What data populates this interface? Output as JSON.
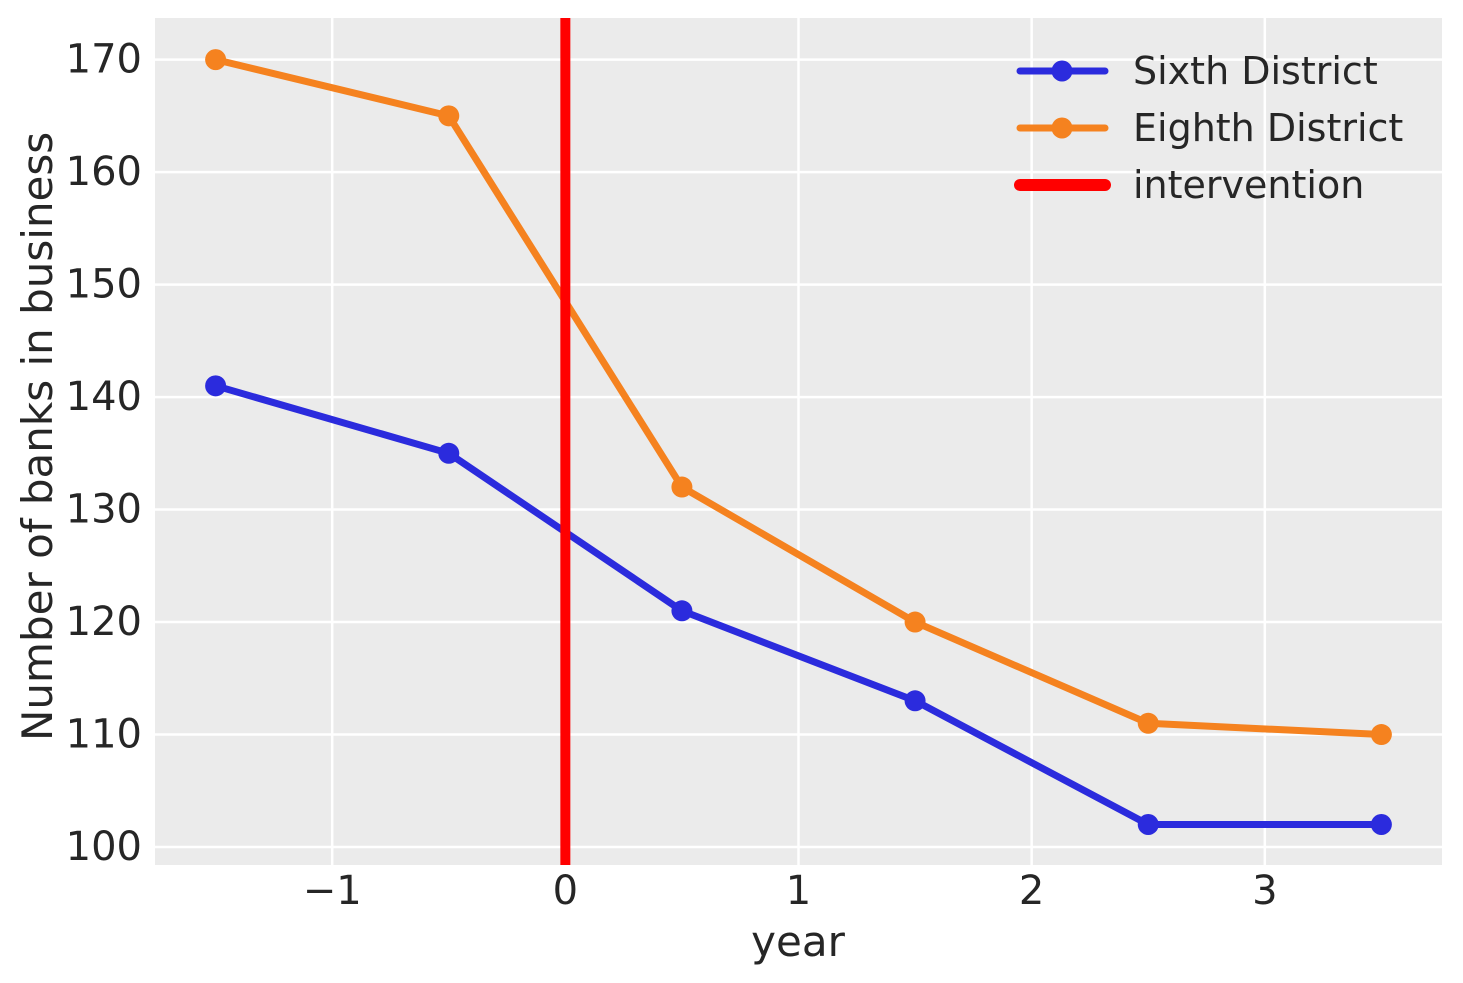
{
  "figure": {
    "background": "#ffffff",
    "plot_background": "#ebebeb",
    "grid_color": "#ffffff",
    "text_color": "#262626"
  },
  "chart_data": {
    "type": "line",
    "title": "",
    "xlabel": "year",
    "ylabel": "Number of banks in business",
    "x": [
      -1.5,
      -0.5,
      0.5,
      1.5,
      2.5,
      3.5
    ],
    "series": [
      {
        "name": "Sixth District",
        "color": "#2b2bdd",
        "marker": "circle",
        "values": [
          141,
          135,
          121,
          113,
          102,
          102
        ]
      },
      {
        "name": "Eighth District",
        "color": "#f5821f",
        "marker": "circle",
        "values": [
          170,
          165,
          132,
          120,
          111,
          110
        ]
      }
    ],
    "intervention_line": {
      "label": "intervention",
      "x": 0,
      "color": "#ff0000"
    },
    "xticks": {
      "values": [
        -1,
        0,
        1,
        2,
        3
      ],
      "labels": [
        "−1",
        "0",
        "1",
        "2",
        "3"
      ]
    },
    "yticks": {
      "values": [
        100,
        110,
        120,
        130,
        140,
        150,
        160,
        170
      ],
      "labels": [
        "100",
        "110",
        "120",
        "130",
        "140",
        "150",
        "160",
        "170"
      ]
    },
    "xlim": [
      -1.76,
      3.76
    ],
    "ylim": [
      98.4,
      173.7
    ],
    "grid": true,
    "legend": {
      "position": "upper-right",
      "frame": false,
      "entries": [
        "Sixth District",
        "Eighth District",
        "intervention"
      ]
    }
  }
}
